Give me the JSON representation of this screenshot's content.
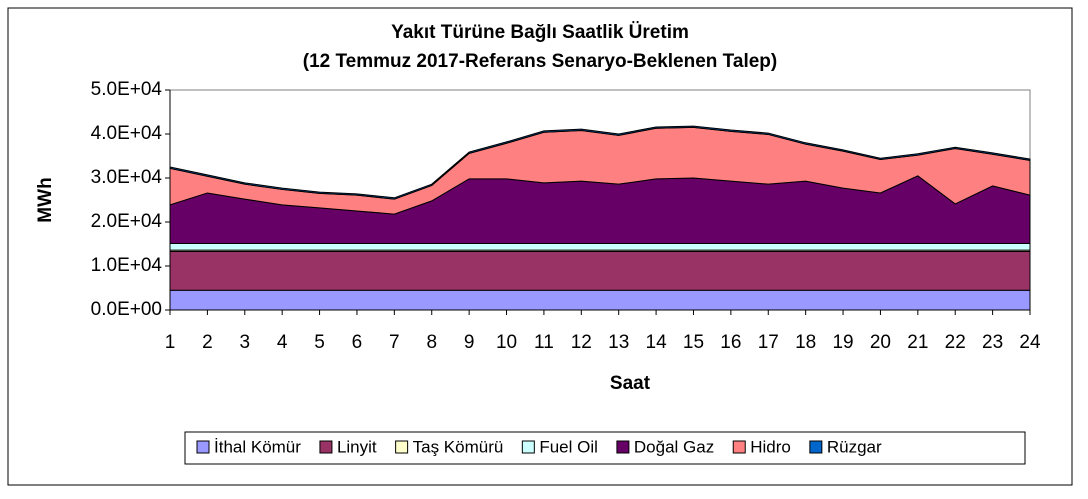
{
  "chart_data": {
    "type": "stacked-area",
    "title": "Yakıt Türüne Bağlı Saatlik Üretim",
    "subtitle": "(12 Temmuz 2017-Referans Senaryo-Beklenen Talep)",
    "x_label": "Saat",
    "y_label": "MWh",
    "categories": [
      "1",
      "2",
      "3",
      "4",
      "5",
      "6",
      "7",
      "8",
      "9",
      "10",
      "11",
      "12",
      "13",
      "14",
      "15",
      "16",
      "17",
      "18",
      "19",
      "20",
      "21",
      "22",
      "23",
      "24"
    ],
    "ylim": [
      0,
      50000
    ],
    "yticks": [
      {
        "value": 0,
        "label": "0.0E+00"
      },
      {
        "value": 10000,
        "label": "1.0E+04"
      },
      {
        "value": 20000,
        "label": "2.0E+04"
      },
      {
        "value": 30000,
        "label": "3.0E+04"
      },
      {
        "value": 40000,
        "label": "4.0E+04"
      },
      {
        "value": 50000,
        "label": "5.0E+04"
      }
    ],
    "legend": "bottom",
    "series": [
      {
        "name": "İthal Kömür",
        "color": "#9999ff",
        "values": [
          4500,
          4500,
          4500,
          4500,
          4500,
          4500,
          4500,
          4500,
          4500,
          4500,
          4500,
          4500,
          4500,
          4500,
          4500,
          4500,
          4500,
          4500,
          4500,
          4500,
          4500,
          4500,
          4500,
          4500
        ]
      },
      {
        "name": "Linyit",
        "color": "#993366",
        "values": [
          8800,
          8800,
          8800,
          8800,
          8800,
          8800,
          8800,
          8800,
          8800,
          8800,
          8800,
          8800,
          8800,
          8800,
          8800,
          8800,
          8800,
          8800,
          8800,
          8800,
          8800,
          8800,
          8800,
          8800
        ]
      },
      {
        "name": "Taş Kömürü",
        "color": "#ffffcc",
        "values": [
          300,
          300,
          300,
          300,
          300,
          300,
          300,
          300,
          300,
          300,
          300,
          300,
          300,
          300,
          300,
          300,
          300,
          300,
          300,
          300,
          300,
          300,
          300,
          300
        ]
      },
      {
        "name": "Fuel Oil",
        "color": "#ccffff",
        "values": [
          1500,
          1500,
          1500,
          1500,
          1500,
          1500,
          1500,
          1500,
          1500,
          1500,
          1500,
          1500,
          1500,
          1500,
          1500,
          1500,
          1500,
          1500,
          1500,
          1500,
          1500,
          1500,
          1500,
          1500
        ]
      },
      {
        "name": "Doğal Gaz",
        "color": "#660066",
        "values": [
          8800,
          11500,
          10100,
          8800,
          8100,
          7400,
          6700,
          9700,
          14700,
          14700,
          13800,
          14200,
          13500,
          14700,
          14900,
          14200,
          13500,
          14200,
          12600,
          11500,
          15400,
          9000,
          13100,
          11000
        ]
      },
      {
        "name": "Hidro",
        "color": "#ff8080",
        "values": [
          8300,
          3800,
          3400,
          3500,
          3300,
          3600,
          3400,
          3500,
          5800,
          8100,
          11500,
          11500,
          11100,
          11500,
          11500,
          11300,
          11300,
          8400,
          8400,
          7600,
          4700,
          12600,
          7200,
          7900
        ]
      },
      {
        "name": "Rüzgar",
        "color": "#0066cc",
        "values": [
          300,
          300,
          300,
          300,
          300,
          300,
          300,
          300,
          300,
          300,
          300,
          300,
          300,
          300,
          300,
          300,
          300,
          300,
          300,
          300,
          300,
          300,
          300,
          300
        ]
      }
    ]
  }
}
